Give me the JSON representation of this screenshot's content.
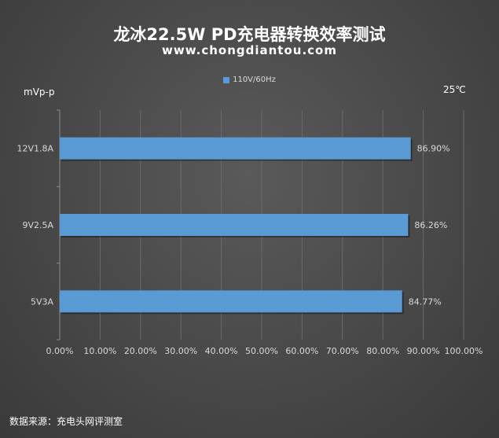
{
  "header": {
    "title": "龙冰22.5W PD充电器转换效率测试",
    "subtitle": "www.chongdiantou.com"
  },
  "annotations": {
    "y_unit": "mVp-p",
    "temperature": "25℃",
    "source": "数据来源：充电头网评测室"
  },
  "colors": {
    "bar": "#5b9bd5",
    "grid": "#6a6a6a"
  },
  "chart_data": {
    "type": "bar",
    "orientation": "horizontal",
    "categories": [
      "12V1.8A",
      "9V2.5A",
      "5V3A"
    ],
    "series": [
      {
        "name": "110V/60Hz",
        "values": [
          86.9,
          86.26,
          84.77
        ]
      }
    ],
    "data_labels": [
      "86.90%",
      "86.26%",
      "84.77%"
    ],
    "x_ticks": [
      "0.00%",
      "10.00%",
      "20.00%",
      "30.00%",
      "40.00%",
      "50.00%",
      "60.00%",
      "70.00%",
      "80.00%",
      "90.00%",
      "100.00%"
    ],
    "xlim": [
      0,
      100
    ],
    "grid": true,
    "legend_position": "top"
  }
}
